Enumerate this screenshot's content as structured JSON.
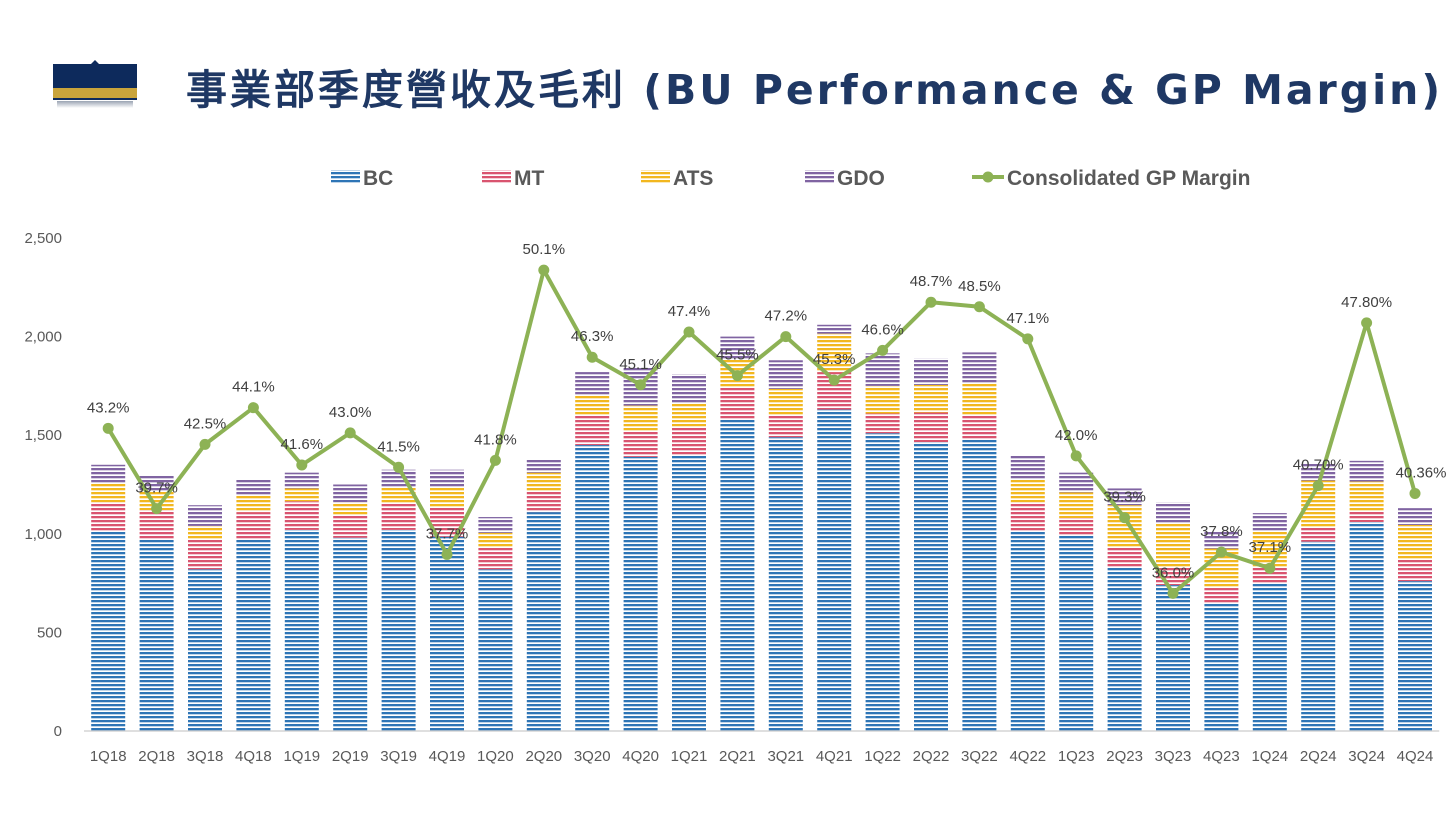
{
  "title": "事業部季度營收及毛利 (BU Performance & GP Margin)",
  "colors": {
    "title": "#1f3864",
    "BC": "#2e75b6",
    "MT": "#d9546f",
    "ATS": "#f2b71f",
    "GDO": "#8064a2",
    "margin": "#8db255",
    "axis": "#595959",
    "logo_navy": "#0d2a5c",
    "logo_gold": "#c9a43b"
  },
  "chart_data": {
    "type": "bar",
    "stacked": true,
    "categories": [
      "1Q18",
      "2Q18",
      "3Q18",
      "4Q18",
      "1Q19",
      "2Q19",
      "3Q19",
      "4Q19",
      "1Q20",
      "2Q20",
      "3Q20",
      "4Q20",
      "1Q21",
      "2Q21",
      "3Q21",
      "4Q21",
      "1Q22",
      "2Q22",
      "3Q22",
      "4Q22",
      "1Q23",
      "2Q23",
      "3Q23",
      "4Q23",
      "1Q24",
      "2Q24",
      "3Q24",
      "4Q24"
    ],
    "series": [
      {
        "name": "BC",
        "values": [
          1015,
          970,
          820,
          975,
          1020,
          980,
          1020,
          985,
          820,
          1110,
          1450,
          1390,
          1400,
          1580,
          1490,
          1630,
          1510,
          1465,
          1480,
          1010,
          990,
          830,
          740,
          650,
          750,
          960,
          1060,
          760
        ]
      },
      {
        "name": "MT",
        "values": [
          145,
          150,
          150,
          135,
          145,
          115,
          135,
          150,
          110,
          105,
          150,
          130,
          145,
          160,
          110,
          190,
          100,
          150,
          125,
          150,
          90,
          100,
          90,
          75,
          80,
          75,
          55,
          110
        ]
      },
      {
        "name": "ATS",
        "values": [
          95,
          95,
          70,
          85,
          65,
          65,
          80,
          105,
          75,
          95,
          100,
          130,
          115,
          145,
          135,
          195,
          140,
          140,
          155,
          115,
          130,
          215,
          225,
          200,
          180,
          235,
          150,
          175
        ]
      },
      {
        "name": "GDO",
        "values": [
          95,
          80,
          105,
          80,
          80,
          90,
          90,
          85,
          80,
          70,
          120,
          195,
          150,
          115,
          145,
          45,
          165,
          135,
          160,
          120,
          100,
          85,
          105,
          90,
          95,
          90,
          105,
          85
        ]
      }
    ],
    "line": {
      "name": "Consolidated GP Margin",
      "values": [
        43.2,
        39.7,
        42.5,
        44.1,
        41.6,
        43.0,
        41.5,
        37.7,
        41.8,
        50.1,
        46.3,
        45.1,
        47.4,
        45.5,
        47.2,
        45.3,
        46.6,
        48.7,
        48.5,
        47.1,
        42.0,
        39.3,
        36.0,
        37.8,
        37.1,
        40.7,
        47.8,
        40.36
      ],
      "labels": [
        "43.2%",
        "39.7%",
        "42.5%",
        "44.1%",
        "41.6%",
        "43.0%",
        "41.5%",
        "37.7%",
        "41.8%",
        "50.1%",
        "46.3%",
        "45.1%",
        "47.4%",
        "45.5%",
        "47.2%",
        "45.3%",
        "46.6%",
        "48.7%",
        "48.5%",
        "47.1%",
        "42.0%",
        "39.3%",
        "36.0%",
        "37.8%",
        "37.1%",
        "40.70%",
        "47.80%",
        "40.36%"
      ],
      "range": [
        30,
        51.5
      ]
    },
    "y_ticks": [
      "0",
      "500",
      "1,000",
      "1,500",
      "2,000",
      "2,500"
    ],
    "y_tick_values": [
      0,
      500,
      1000,
      1500,
      2000,
      2500
    ],
    "ylim": [
      0,
      2500
    ],
    "legend": [
      "BC",
      "MT",
      "ATS",
      "GDO",
      "Consolidated GP Margin"
    ],
    "legend_position": "top-center",
    "gridlines": false
  }
}
